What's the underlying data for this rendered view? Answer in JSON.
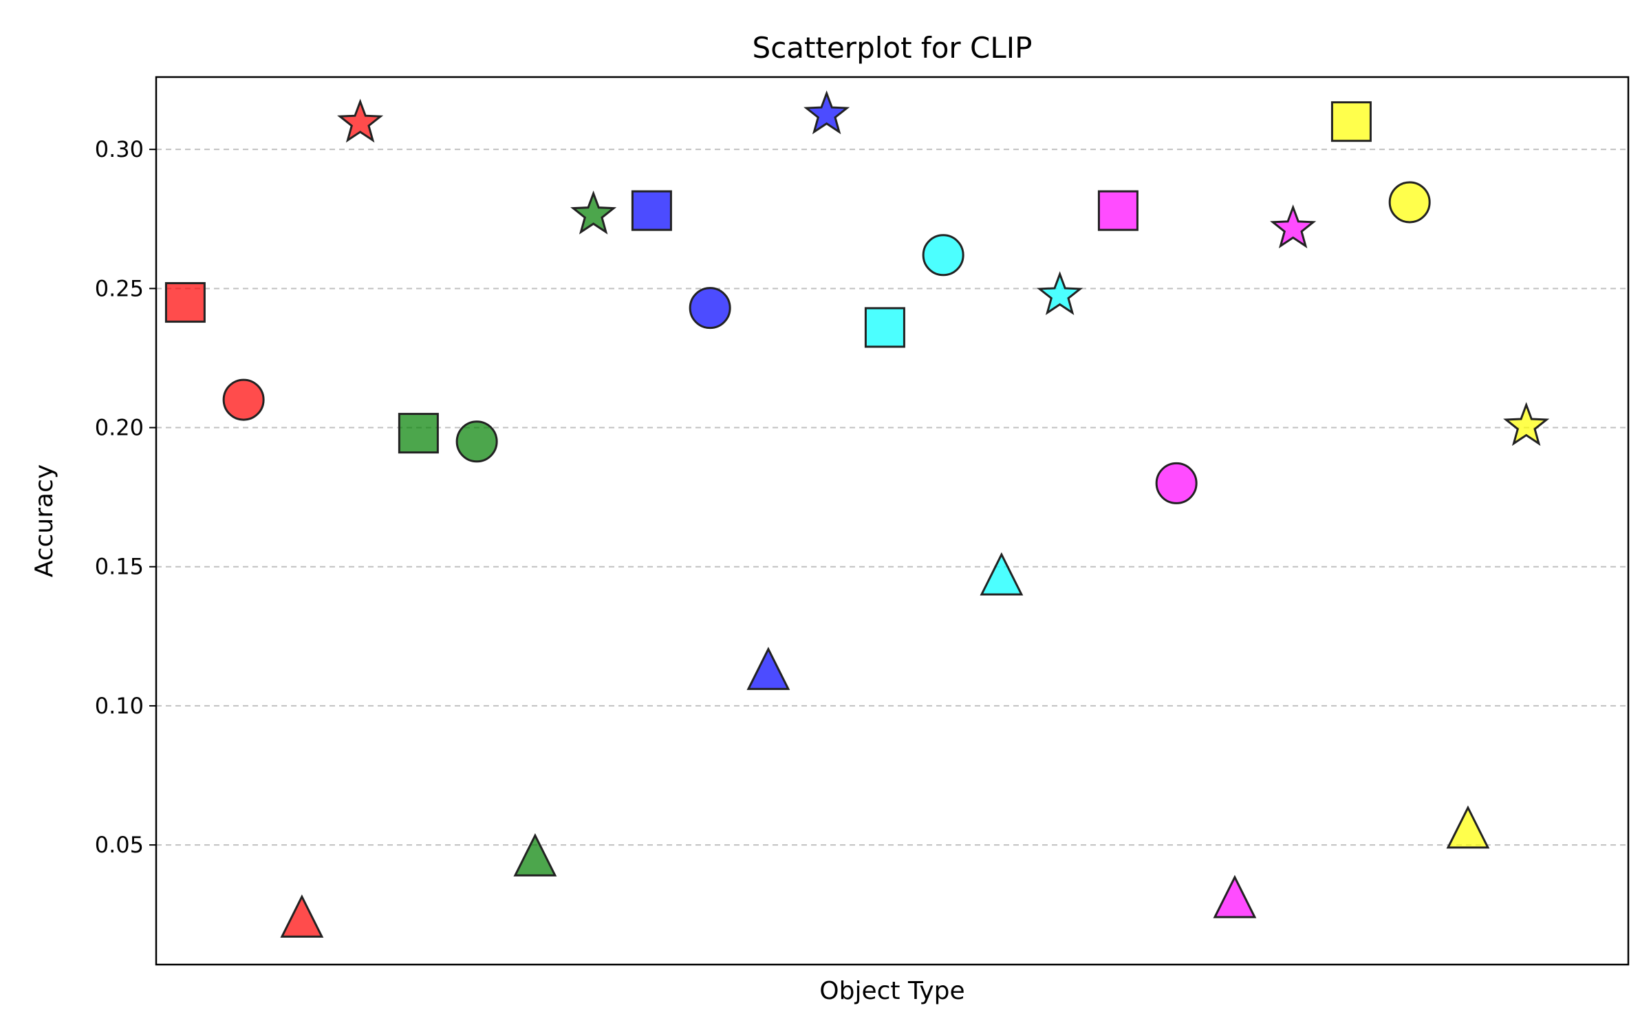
{
  "chart_data": {
    "type": "scatter",
    "title": "Scatterplot for CLIP",
    "xlabel": "Object Type",
    "ylabel": "Accuracy",
    "ylim": [
      0.007,
      0.326
    ],
    "xlim": [
      -0.5,
      24.75
    ],
    "yticks": [
      "0.05",
      "0.10",
      "0.15",
      "0.20",
      "0.25",
      "0.30"
    ],
    "grid": "horizontal dashed",
    "points": [
      {
        "x": 0,
        "y": 0.245,
        "color": "#ff0000",
        "marker": "square"
      },
      {
        "x": 1,
        "y": 0.21,
        "color": "#ff0000",
        "marker": "circle"
      },
      {
        "x": 2,
        "y": 0.022,
        "color": "#ff0000",
        "marker": "triangle"
      },
      {
        "x": 3,
        "y": 0.309,
        "color": "#ff0000",
        "marker": "star"
      },
      {
        "x": 4,
        "y": 0.198,
        "color": "#008000",
        "marker": "square"
      },
      {
        "x": 5,
        "y": 0.195,
        "color": "#008000",
        "marker": "circle"
      },
      {
        "x": 6,
        "y": 0.044,
        "color": "#008000",
        "marker": "triangle"
      },
      {
        "x": 7,
        "y": 0.276,
        "color": "#008000",
        "marker": "star"
      },
      {
        "x": 8,
        "y": 0.278,
        "color": "#0000ff",
        "marker": "square"
      },
      {
        "x": 9,
        "y": 0.243,
        "color": "#0000ff",
        "marker": "circle"
      },
      {
        "x": 10,
        "y": 0.111,
        "color": "#0000ff",
        "marker": "triangle"
      },
      {
        "x": 11,
        "y": 0.312,
        "color": "#0000ff",
        "marker": "star"
      },
      {
        "x": 12,
        "y": 0.236,
        "color": "#00ffff",
        "marker": "square"
      },
      {
        "x": 13,
        "y": 0.262,
        "color": "#00ffff",
        "marker": "circle"
      },
      {
        "x": 14,
        "y": 0.145,
        "color": "#00ffff",
        "marker": "triangle"
      },
      {
        "x": 15,
        "y": 0.247,
        "color": "#00ffff",
        "marker": "star"
      },
      {
        "x": 16,
        "y": 0.278,
        "color": "#ff00ff",
        "marker": "square"
      },
      {
        "x": 17,
        "y": 0.18,
        "color": "#ff00ff",
        "marker": "circle"
      },
      {
        "x": 18,
        "y": 0.029,
        "color": "#ff00ff",
        "marker": "triangle"
      },
      {
        "x": 19,
        "y": 0.271,
        "color": "#ff00ff",
        "marker": "star"
      },
      {
        "x": 20,
        "y": 0.31,
        "color": "#ffff00",
        "marker": "square"
      },
      {
        "x": 21,
        "y": 0.281,
        "color": "#ffff00",
        "marker": "circle"
      },
      {
        "x": 22,
        "y": 0.054,
        "color": "#ffff00",
        "marker": "triangle"
      },
      {
        "x": 23,
        "y": 0.2,
        "color": "#ffff00",
        "marker": "star"
      }
    ]
  }
}
